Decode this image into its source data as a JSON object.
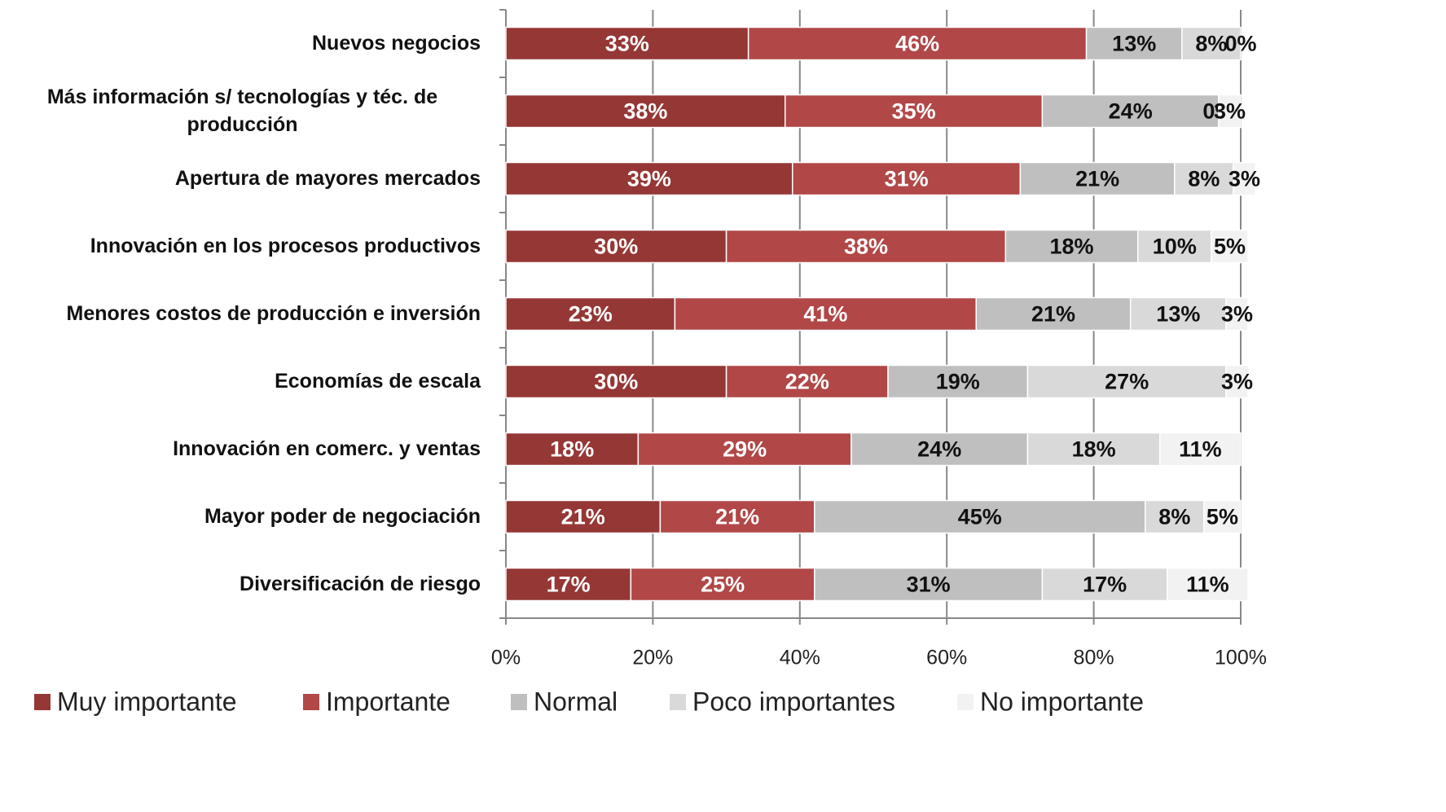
{
  "chart_data": {
    "type": "stacked_barh",
    "categories": [
      "Nuevos negocios",
      "Más información s/ tecnologías y téc. de producción",
      "Apertura de mayores mercados",
      "Innovación en los procesos productivos",
      "Menores costos de producción e inversión",
      "Economías de escala",
      "Innovación en comerc. y ventas",
      "Mayor poder de negociación",
      "Diversificación de riesgo"
    ],
    "series": [
      {
        "name": "Muy importante",
        "color": "#953735",
        "values": [
          33,
          38,
          39,
          30,
          23,
          30,
          18,
          21,
          17
        ],
        "value_labels": [
          "33%",
          "38%",
          "39%",
          "30%",
          "23%",
          "30%",
          "18%",
          "21%",
          "17%"
        ]
      },
      {
        "name": "Importante",
        "color": "#b14747",
        "values": [
          46,
          35,
          31,
          38,
          41,
          22,
          29,
          21,
          25
        ],
        "value_labels": [
          "46%",
          "35%",
          "31%",
          "38%",
          "41%",
          "22%",
          "29%",
          "21%",
          "25%"
        ]
      },
      {
        "name": "Normal",
        "color": "#bfbfbf",
        "values": [
          13,
          24,
          21,
          18,
          21,
          19,
          24,
          45,
          31
        ],
        "value_labels": [
          "13%",
          "24%",
          "21%",
          "18%",
          "21%",
          "19%",
          "24%",
          "45%",
          "31%"
        ]
      },
      {
        "name": "Poco importantes",
        "color": "#d9d9d9",
        "values": [
          8,
          0,
          8,
          10,
          13,
          27,
          18,
          8,
          17
        ],
        "value_labels": [
          "8%",
          "0%",
          "8%",
          "10%",
          "13%",
          "27%",
          "18%",
          "8%",
          "17%"
        ]
      },
      {
        "name": "No importante",
        "color": "#f2f2f2",
        "values": [
          0,
          3,
          3,
          5,
          3,
          3,
          11,
          5,
          11
        ],
        "value_labels": [
          "0%",
          "3%",
          "3%",
          "5%",
          "3%",
          "3%",
          "11%",
          "5%",
          "11%"
        ]
      }
    ],
    "xlim": [
      0,
      100
    ],
    "xticks": [
      {
        "value": 0,
        "label": "0%"
      },
      {
        "value": 20,
        "label": "20%"
      },
      {
        "value": 40,
        "label": "40%"
      },
      {
        "value": 60,
        "label": "60%"
      },
      {
        "value": 80,
        "label": "80%"
      },
      {
        "value": 100,
        "label": "100%"
      }
    ],
    "grid": true,
    "legend": "bottom"
  }
}
